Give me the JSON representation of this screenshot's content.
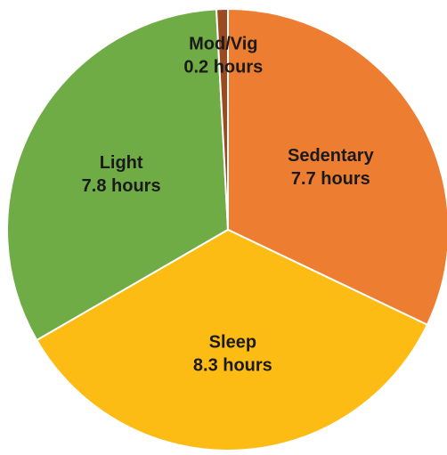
{
  "chart_data": {
    "type": "pie",
    "categories": [
      "Sedentary",
      "Sleep",
      "Light",
      "Mod/Vig"
    ],
    "values": [
      7.7,
      8.3,
      7.8,
      0.2
    ],
    "value_labels": [
      "7.7 hours",
      "8.3 hours",
      "7.8 hours",
      "0.2 hours"
    ],
    "colors": [
      "#ed7d31",
      "#fdbc14",
      "#6fac46",
      "#9c4a20"
    ]
  }
}
